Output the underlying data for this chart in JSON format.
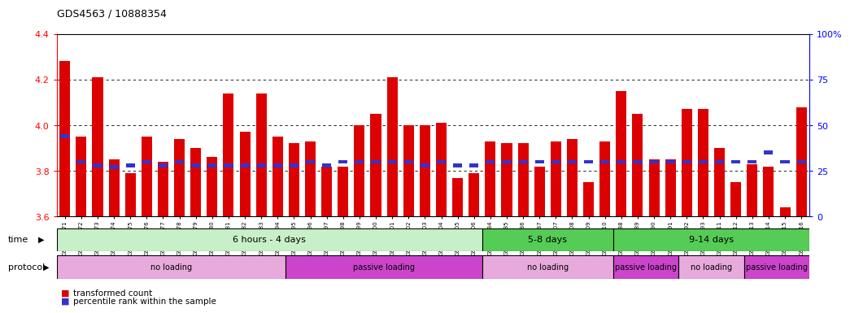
{
  "title": "GDS4563 / 10888354",
  "samples": [
    "GSM930471",
    "GSM930472",
    "GSM930473",
    "GSM930474",
    "GSM930475",
    "GSM930476",
    "GSM930477",
    "GSM930478",
    "GSM930479",
    "GSM930480",
    "GSM930481",
    "GSM930482",
    "GSM930483",
    "GSM930494",
    "GSM930495",
    "GSM930496",
    "GSM930497",
    "GSM930498",
    "GSM930499",
    "GSM930500",
    "GSM930501",
    "GSM930502",
    "GSM930503",
    "GSM930504",
    "GSM930505",
    "GSM930506",
    "GSM930484",
    "GSM930485",
    "GSM930486",
    "GSM930487",
    "GSM930507",
    "GSM930508",
    "GSM930509",
    "GSM930510",
    "GSM930488",
    "GSM930489",
    "GSM930490",
    "GSM930491",
    "GSM930492",
    "GSM930493",
    "GSM930511",
    "GSM930512",
    "GSM930513",
    "GSM930514",
    "GSM930515",
    "GSM930516"
  ],
  "red_values": [
    4.28,
    3.95,
    4.21,
    3.85,
    3.79,
    3.95,
    3.84,
    3.94,
    3.9,
    3.86,
    4.14,
    3.97,
    4.14,
    3.95,
    3.92,
    3.93,
    3.82,
    3.82,
    4.0,
    4.05,
    4.21,
    4.0,
    4.0,
    4.01,
    3.77,
    3.79,
    3.93,
    3.92,
    3.92,
    3.82,
    3.93,
    3.94,
    3.75,
    3.93,
    4.15,
    4.05,
    3.85,
    3.85,
    4.07,
    4.07,
    3.9,
    3.75,
    3.83,
    3.82,
    3.64,
    4.08
  ],
  "blue_percentiles": [
    44,
    30,
    28,
    27,
    28,
    30,
    28,
    30,
    28,
    28,
    28,
    28,
    28,
    28,
    28,
    30,
    28,
    30,
    30,
    30,
    30,
    30,
    28,
    30,
    28,
    28,
    30,
    30,
    30,
    30,
    30,
    30,
    30,
    30,
    30,
    30,
    30,
    30,
    30,
    30,
    30,
    30,
    30,
    35,
    30,
    30
  ],
  "ymin": 3.6,
  "ymax": 4.4,
  "yticks": [
    3.6,
    3.8,
    4.0,
    4.2,
    4.4
  ],
  "y2ticks": [
    0,
    25,
    50,
    75,
    100
  ],
  "bar_color": "#dd0000",
  "blue_color": "#3333cc",
  "time_colors": [
    "#c8f0c8",
    "#55cc55"
  ],
  "prot_colors": [
    "#dd99dd",
    "#cc44cc"
  ],
  "legend_red": "transformed count",
  "legend_blue": "percentile rank within the sample",
  "time_groups": [
    {
      "label": "6 hours - 4 days",
      "start": 0,
      "end": 26,
      "dark": false
    },
    {
      "label": "5-8 days",
      "start": 26,
      "end": 34,
      "dark": true
    },
    {
      "label": "9-14 days",
      "start": 34,
      "end": 46,
      "dark": true
    }
  ],
  "protocol_groups": [
    {
      "label": "no loading",
      "start": 0,
      "end": 14,
      "dark": false
    },
    {
      "label": "passive loading",
      "start": 14,
      "end": 26,
      "dark": true
    },
    {
      "label": "no loading",
      "start": 26,
      "end": 34,
      "dark": false
    },
    {
      "label": "passive loading",
      "start": 34,
      "end": 38,
      "dark": true
    },
    {
      "label": "no loading",
      "start": 38,
      "end": 42,
      "dark": false
    },
    {
      "label": "passive loading",
      "start": 42,
      "end": 46,
      "dark": true
    }
  ]
}
